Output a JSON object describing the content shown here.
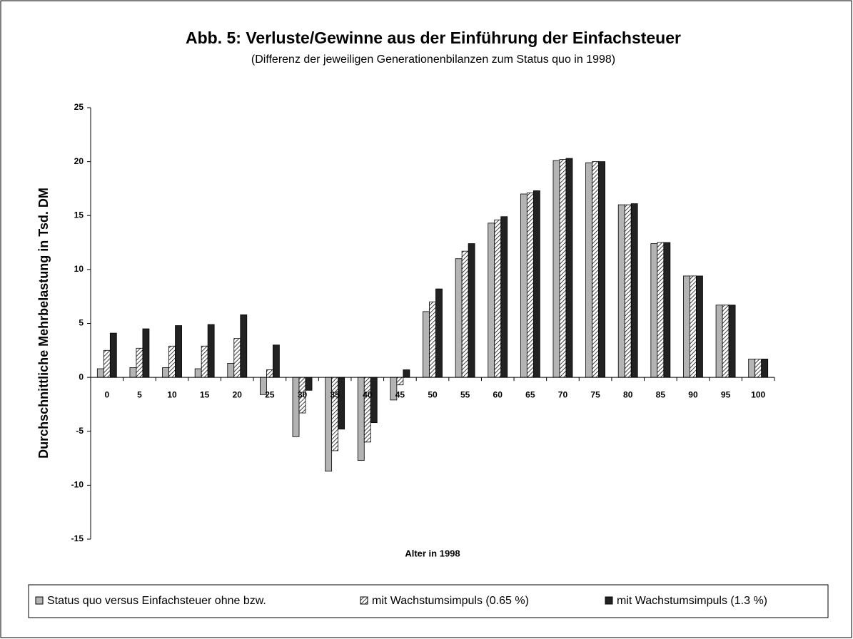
{
  "chart_data": {
    "type": "bar",
    "title": "Abb. 5: Verluste/Gewinne aus der Einführung der Einfachsteuer",
    "subtitle": "(Differenz der jeweiligen Generationenbilanzen zum Status quo in 1998)",
    "x_label": "Alter in 1998",
    "y_label": "Durchschnittliche Mehrbelastung in Tsd. DM",
    "categories": [
      "0",
      "5",
      "10",
      "15",
      "20",
      "25",
      "30",
      "35",
      "40",
      "45",
      "50",
      "55",
      "60",
      "65",
      "70",
      "75",
      "80",
      "85",
      "90",
      "95",
      "100"
    ],
    "series": [
      {
        "name": "Status quo versus Einfachsteuer ohne bzw.",
        "color": "#b4b4b4",
        "values": [
          0.8,
          0.9,
          0.9,
          0.8,
          1.3,
          -1.6,
          -5.5,
          -8.7,
          -7.7,
          -2.1,
          6.1,
          11.0,
          14.3,
          17.0,
          20.1,
          19.9,
          16.0,
          12.4,
          9.4,
          6.7,
          1.7
        ]
      },
      {
        "name": "mit Wachstumsimpuls (0.65 %)",
        "color": "#000000",
        "pattern": "hatch",
        "values": [
          2.5,
          2.7,
          2.9,
          2.9,
          3.6,
          0.7,
          -3.3,
          -6.8,
          -6.0,
          -0.7,
          7.0,
          11.7,
          14.6,
          17.1,
          20.2,
          20.0,
          16.0,
          12.5,
          9.4,
          6.7,
          1.7
        ]
      },
      {
        "name": "mit Wachstumsimpuls (1.3 %)",
        "color": "#222222",
        "values": [
          4.1,
          4.5,
          4.8,
          4.9,
          5.8,
          3.0,
          -1.2,
          -4.8,
          -4.2,
          0.7,
          8.2,
          12.4,
          14.9,
          17.3,
          20.3,
          20.0,
          16.1,
          12.5,
          9.4,
          6.7,
          1.7
        ]
      }
    ],
    "ylim": [
      -15,
      25
    ],
    "yticks": [
      -15,
      -10,
      -5,
      0,
      5,
      10,
      15,
      20,
      25
    ],
    "grid": false,
    "legend": "bottom"
  }
}
